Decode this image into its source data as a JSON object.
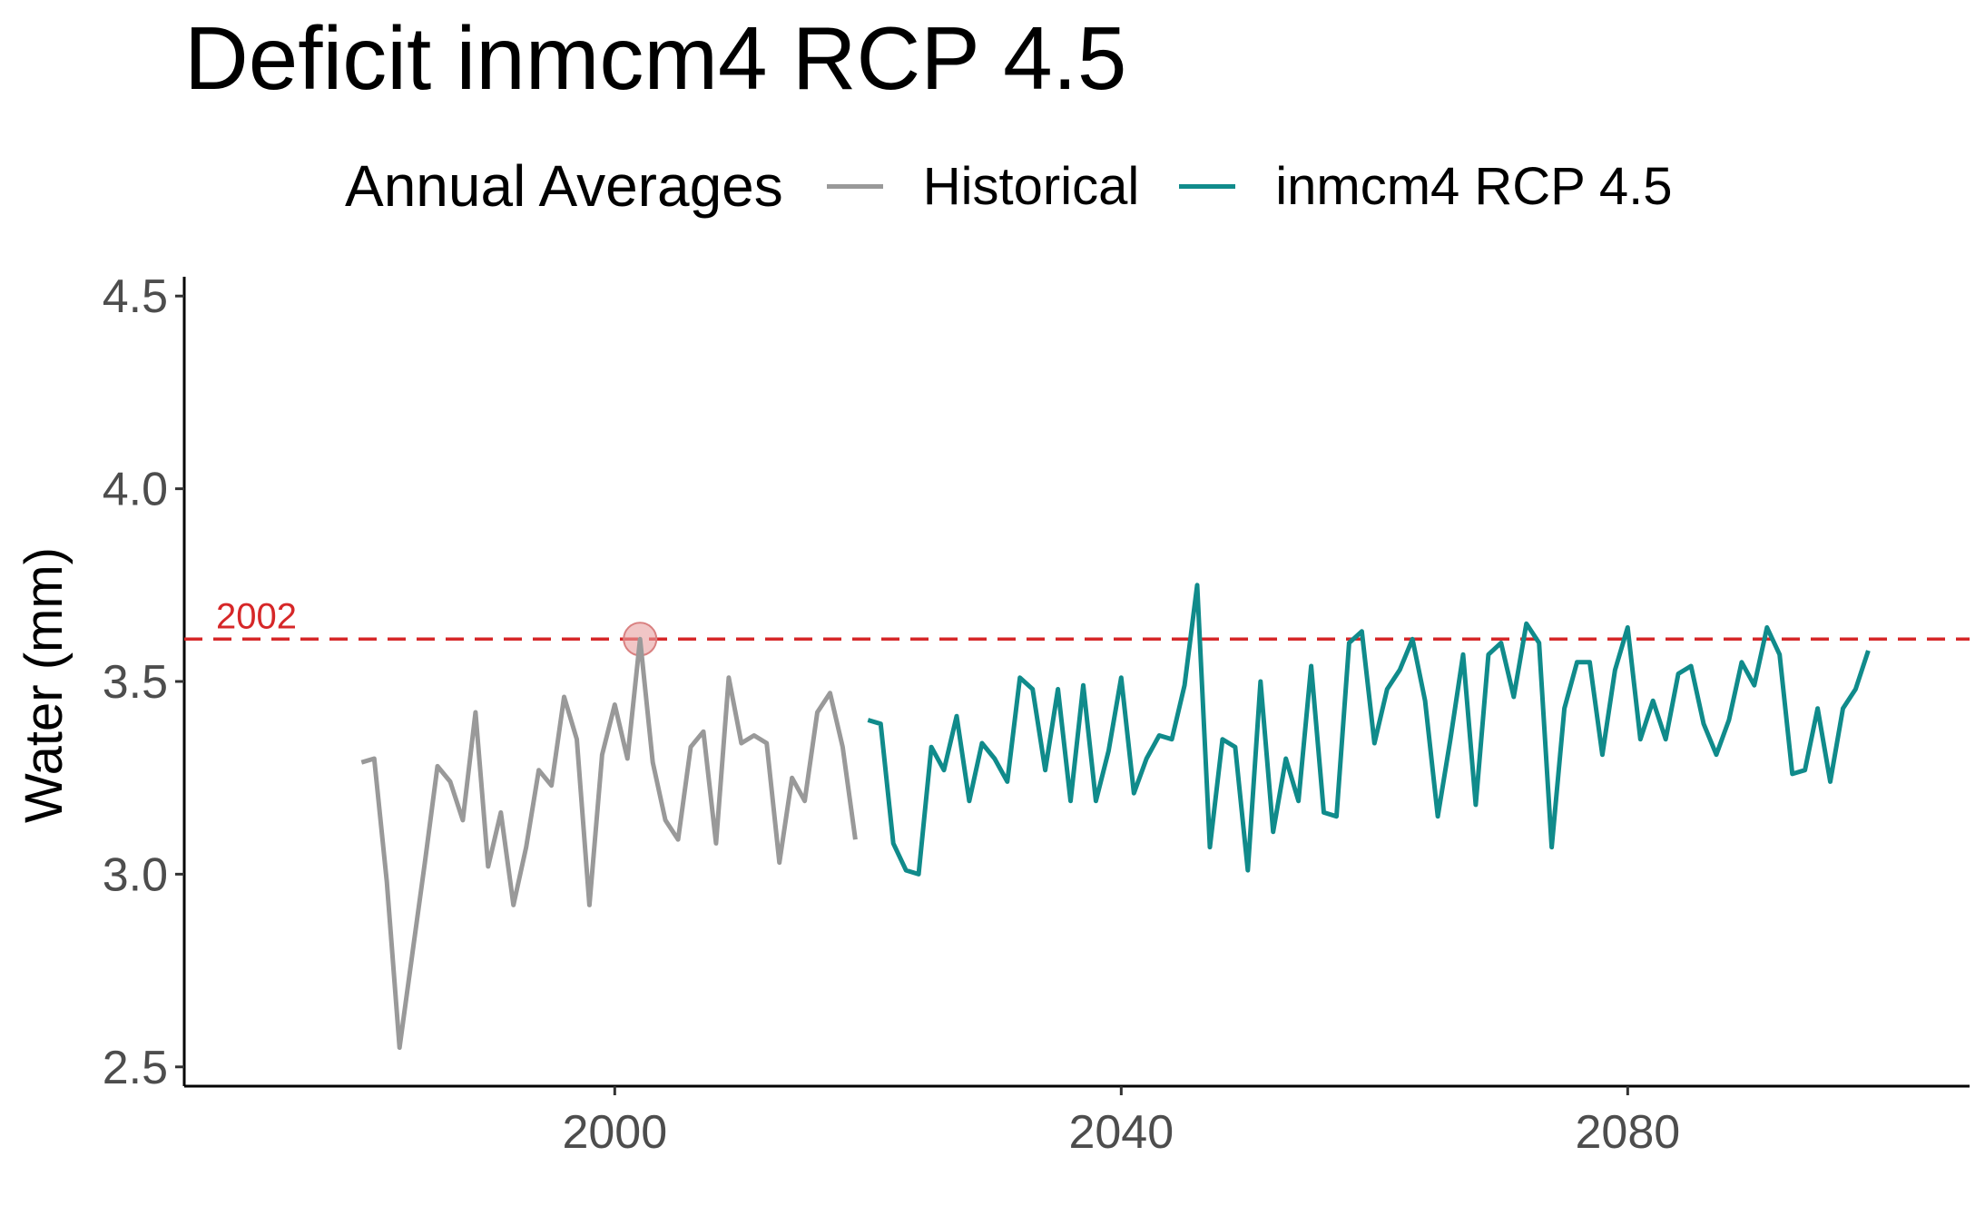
{
  "chart_data": {
    "type": "line",
    "title": "Deficit inmcm4 RCP 4.5",
    "xlabel": "",
    "ylabel": "Water (mm)",
    "xlim": [
      1966,
      2107
    ],
    "ylim": [
      2.45,
      4.55
    ],
    "xticks": [
      2000,
      2040,
      2080
    ],
    "yticks": [
      2.5,
      3.0,
      3.5,
      4.0,
      4.5
    ],
    "ytick_labels": [
      "2.5",
      "3.0",
      "3.5",
      "4.0",
      "4.5"
    ],
    "grid": false,
    "legend": {
      "title": "Annual Averages",
      "position": "top",
      "entries": [
        "Historical",
        "inmcm4 RCP 4.5"
      ]
    },
    "reference_line": {
      "y": 3.61,
      "label": "2002",
      "color": "#d62728",
      "style": "dashed"
    },
    "highlight_point": {
      "x": 2002,
      "y": 3.61,
      "color": "#e8a0a0"
    },
    "series": [
      {
        "name": "Historical",
        "color": "#999999",
        "x": [
          1980,
          1981,
          1982,
          1983,
          1984,
          1985,
          1986,
          1987,
          1988,
          1989,
          1990,
          1991,
          1992,
          1993,
          1994,
          1995,
          1996,
          1997,
          1998,
          1999,
          2000,
          2001,
          2002,
          2003,
          2004,
          2005,
          2006,
          2007,
          2008,
          2009,
          2010,
          2011,
          2012,
          2013,
          2014,
          2015,
          2016,
          2017,
          2018,
          2019
        ],
        "y": [
          3.29,
          3.3,
          2.98,
          2.55,
          2.79,
          3.03,
          3.28,
          3.24,
          3.14,
          3.42,
          3.02,
          3.16,
          2.92,
          3.07,
          3.27,
          3.23,
          3.46,
          3.35,
          2.92,
          3.31,
          3.44,
          3.3,
          3.61,
          3.29,
          3.14,
          3.09,
          3.33,
          3.37,
          3.08,
          3.51,
          3.34,
          3.36,
          3.34,
          3.03,
          3.25,
          3.19,
          3.42,
          3.47,
          3.33,
          3.09
        ]
      },
      {
        "name": "inmcm4 RCP 4.5",
        "color": "#108b8b",
        "x": [
          2020,
          2021,
          2022,
          2023,
          2024,
          2025,
          2026,
          2027,
          2028,
          2029,
          2030,
          2031,
          2032,
          2033,
          2034,
          2035,
          2036,
          2037,
          2038,
          2039,
          2040,
          2041,
          2042,
          2043,
          2044,
          2045,
          2046,
          2047,
          2048,
          2049,
          2050,
          2051,
          2052,
          2053,
          2054,
          2055,
          2056,
          2057,
          2058,
          2059,
          2060,
          2061,
          2062,
          2063,
          2064,
          2065,
          2066,
          2067,
          2068,
          2069,
          2070,
          2071,
          2072,
          2073,
          2074,
          2075,
          2076,
          2077,
          2078,
          2079,
          2080,
          2081,
          2082,
          2083,
          2084,
          2085,
          2086,
          2087,
          2088,
          2089,
          2090,
          2091,
          2092,
          2093,
          2094,
          2095,
          2096,
          2097,
          2098,
          2099
        ],
        "y": [
          3.4,
          3.39,
          3.08,
          3.01,
          3.0,
          3.33,
          3.27,
          3.41,
          3.19,
          3.34,
          3.3,
          3.24,
          3.51,
          3.48,
          3.27,
          3.48,
          3.19,
          3.49,
          3.19,
          3.32,
          3.51,
          3.21,
          3.3,
          3.36,
          3.35,
          3.49,
          3.75,
          3.07,
          3.35,
          3.33,
          3.01,
          3.5,
          3.11,
          3.3,
          3.19,
          3.54,
          3.16,
          3.15,
          3.6,
          3.63,
          3.34,
          3.48,
          3.53,
          3.61,
          3.45,
          3.15,
          3.35,
          3.57,
          3.18,
          3.57,
          3.6,
          3.46,
          3.65,
          3.6,
          3.07,
          3.43,
          3.55,
          3.55,
          3.31,
          3.53,
          3.64,
          3.35,
          3.45,
          3.35,
          3.52,
          3.54,
          3.39,
          3.31,
          3.4,
          3.55,
          3.49,
          3.64,
          3.57,
          3.26,
          3.27,
          3.43,
          3.24,
          3.43,
          3.48,
          3.58
        ]
      }
    ]
  }
}
